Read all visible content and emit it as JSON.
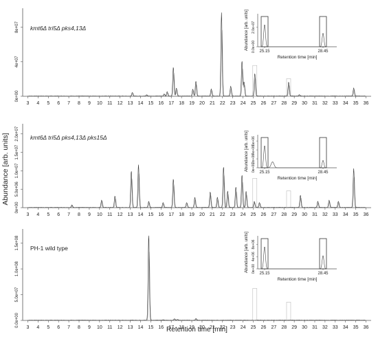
{
  "figure": {
    "ylabel": "Abundance [arb. units]",
    "xlabel": "Retention time [min]"
  },
  "chart_data": [
    {
      "type": "line",
      "title": "kmt6Δ tri5Δ pks4,13Δ",
      "xlim": [
        2.5,
        36.5
      ],
      "ylim": [
        0,
        100000000
      ],
      "yticks": [
        "0e+00",
        "4e+07",
        "8e+07"
      ],
      "xticks": [
        3,
        4,
        5,
        6,
        7,
        8,
        9,
        10,
        11,
        12,
        13,
        14,
        15,
        16,
        17,
        18,
        19,
        20,
        21,
        22,
        23,
        24,
        25,
        26,
        27,
        28,
        29,
        30,
        31,
        32,
        33,
        34,
        35,
        36
      ],
      "highlight_boxes_x": [
        25.15,
        28.45
      ],
      "peaks": [
        {
          "x": 13.2,
          "y": 4000000
        },
        {
          "x": 14.6,
          "y": 1500000
        },
        {
          "x": 16.3,
          "y": 2500000
        },
        {
          "x": 16.6,
          "y": 5000000
        },
        {
          "x": 17.2,
          "y": 33000000
        },
        {
          "x": 17.5,
          "y": 9000000
        },
        {
          "x": 19.1,
          "y": 8000000
        },
        {
          "x": 19.4,
          "y": 17000000
        },
        {
          "x": 20.9,
          "y": 8000000
        },
        {
          "x": 21.9,
          "y": 95000000
        },
        {
          "x": 22.8,
          "y": 11000000
        },
        {
          "x": 23.9,
          "y": 40000000
        },
        {
          "x": 24.1,
          "y": 16000000
        },
        {
          "x": 25.15,
          "y": 26000000
        },
        {
          "x": 28.45,
          "y": 16000000
        },
        {
          "x": 29.5,
          "y": 1500000
        },
        {
          "x": 34.8,
          "y": 9000000
        }
      ],
      "inset": {
        "ylabel": "Abundance [arb. units]",
        "xlabel": "Retention time [min]",
        "yticks": [
          "0.0e+00",
          "2.0e+07"
        ],
        "xticks": [
          "25.15",
          "28.45"
        ],
        "peaks": [
          {
            "x": 25.15,
            "y": 26000000
          },
          {
            "x": 28.45,
            "y": 16000000
          }
        ]
      }
    },
    {
      "type": "line",
      "title": "kmt6Δ tri5Δ pks4,13Δ pks15Δ",
      "xlim": [
        2.5,
        36.5
      ],
      "ylim": [
        0,
        20500000
      ],
      "yticks": [
        "0e+00",
        "5.0e+06",
        "1.0e+07",
        "1.5e+07",
        "2.0e+07"
      ],
      "xticks": [
        3,
        4,
        5,
        6,
        7,
        8,
        9,
        10,
        11,
        12,
        13,
        14,
        15,
        16,
        17,
        18,
        19,
        20,
        21,
        22,
        23,
        24,
        25,
        26,
        27,
        28,
        29,
        30,
        31,
        32,
        33,
        34,
        35,
        36
      ],
      "highlight_boxes_x": [
        25.15,
        28.45
      ],
      "peaks": [
        {
          "x": 7.3,
          "y": 600000
        },
        {
          "x": 10.2,
          "y": 1800000
        },
        {
          "x": 11.5,
          "y": 2800000
        },
        {
          "x": 13.1,
          "y": 9000000
        },
        {
          "x": 13.8,
          "y": 10500000
        },
        {
          "x": 14.8,
          "y": 1500000
        },
        {
          "x": 16.2,
          "y": 1200000
        },
        {
          "x": 17.2,
          "y": 7000000
        },
        {
          "x": 18.5,
          "y": 1200000
        },
        {
          "x": 19.3,
          "y": 2500000
        },
        {
          "x": 20.8,
          "y": 3800000
        },
        {
          "x": 21.5,
          "y": 2500000
        },
        {
          "x": 22.1,
          "y": 10000000
        },
        {
          "x": 22.5,
          "y": 4000000
        },
        {
          "x": 23.3,
          "y": 5000000
        },
        {
          "x": 23.9,
          "y": 8000000
        },
        {
          "x": 24.3,
          "y": 4000000
        },
        {
          "x": 25.1,
          "y": 1500000
        },
        {
          "x": 25.6,
          "y": 1200000
        },
        {
          "x": 29.6,
          "y": 3000000
        },
        {
          "x": 31.3,
          "y": 1500000
        },
        {
          "x": 32.4,
          "y": 1800000
        },
        {
          "x": 33.3,
          "y": 1500000
        },
        {
          "x": 34.8,
          "y": 9500000
        }
      ],
      "inset": {
        "ylabel": "Abundance [arb. units]",
        "xlabel": "Retention time [min]",
        "yticks": [
          "0e+00",
          "2e+06",
          "4e+06",
          "6e+06"
        ],
        "xticks": [
          "25.15",
          "28.45"
        ],
        "peaks": [
          {
            "x": 25.15,
            "y": 1500000
          },
          {
            "x": 28.45,
            "y": 500000
          }
        ]
      }
    },
    {
      "type": "line",
      "title": "PH-1 wild type",
      "xlim": [
        2.5,
        36.5
      ],
      "ylim": [
        0,
        160000000
      ],
      "yticks": [
        "0.0e+00",
        "5.0e+07",
        "1.0e+08",
        "1.5e+08"
      ],
      "xticks": [
        3,
        4,
        5,
        6,
        7,
        8,
        9,
        10,
        11,
        12,
        13,
        14,
        15,
        16,
        17,
        18,
        19,
        20,
        21,
        22,
        23,
        24,
        25,
        26,
        27,
        28,
        29,
        30,
        31,
        32,
        33,
        34,
        35,
        36
      ],
      "highlight_boxes_x": [
        25.15,
        28.45
      ],
      "peaks": [
        {
          "x": 14.8,
          "y": 150000000
        },
        {
          "x": 16.2,
          "y": 1000000
        },
        {
          "x": 17.3,
          "y": 2500000
        },
        {
          "x": 17.6,
          "y": 1500000
        },
        {
          "x": 19.4,
          "y": 3000000
        }
      ],
      "inset": {
        "ylabel": "Abundance [arb. units]",
        "xlabel": "Retention time [min]",
        "yticks": [
          "0e+00",
          "4e+06",
          "8e+06"
        ],
        "xticks": [
          "25.15",
          "28.45"
        ],
        "peaks": [
          {
            "x": 25.15,
            "y": 1000000
          },
          {
            "x": 28.45,
            "y": 600000
          }
        ]
      }
    }
  ]
}
